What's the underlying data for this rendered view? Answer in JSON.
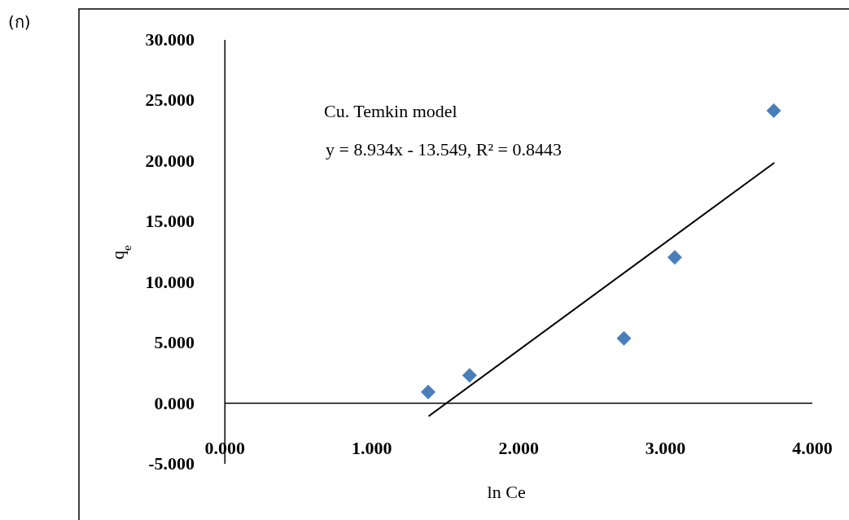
{
  "chart_data": {
    "type": "scatter",
    "xlabel": "ln Ce",
    "ylabel": "q$_{e}$",
    "annotations": [
      "(ก)",
      "Cu. Temkin model",
      "y = 8.934x - 13.549, R² = 0.8443"
    ],
    "xlim": [
      0,
      4
    ],
    "ylim": [
      -5,
      30
    ],
    "xticks": [
      {
        "value": 0,
        "label": "0.000"
      },
      {
        "value": 1,
        "label": "1.000"
      },
      {
        "value": 2,
        "label": "2.000"
      },
      {
        "value": 3,
        "label": "3.000"
      },
      {
        "value": 4,
        "label": "4.000"
      }
    ],
    "yticks": [
      {
        "value": -5,
        "label": "-5.000"
      },
      {
        "value": 0,
        "label": "0.000"
      },
      {
        "value": 5,
        "label": "5.000"
      },
      {
        "value": 10,
        "label": "10.000"
      },
      {
        "value": 15,
        "label": "15.000"
      },
      {
        "value": 20,
        "label": "20.000"
      },
      {
        "value": 25,
        "label": "25.000"
      },
      {
        "value": 30,
        "label": "30.000"
      }
    ],
    "marker": "diamond",
    "series": [
      {
        "type": "scatter",
        "color": "#4a7ebb",
        "x": [
          1.384,
          1.666,
          2.717,
          3.063,
          3.737
        ],
        "values": [
          0.93,
          2.31,
          5.36,
          12.04,
          24.16
        ]
      },
      {
        "type": "line",
        "color": "#000000",
        "marker": "none",
        "x": [
          1.387,
          3.741
        ],
        "values": [
          -1.07,
          19.86
        ]
      }
    ]
  }
}
